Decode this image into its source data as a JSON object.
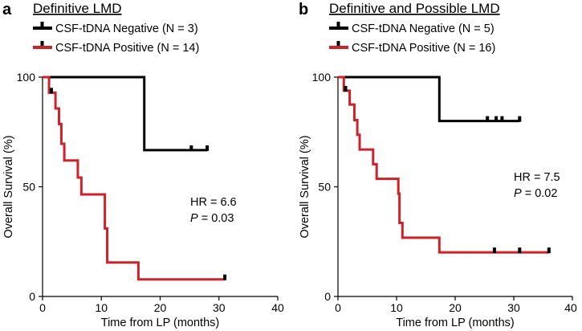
{
  "figure": {
    "panels": [
      "a",
      "b"
    ]
  },
  "chart_data": [
    {
      "type": "line",
      "panel_label": "a",
      "title": "Definitive LMD",
      "xlabel": "Time from LP (months)",
      "ylabel": "Overall Survival (%)",
      "xlim": [
        0,
        40
      ],
      "ylim": [
        0,
        100
      ],
      "xticks": [
        "0",
        "10",
        "20",
        "30",
        "40"
      ],
      "yticks": [
        "0",
        "50",
        "100"
      ],
      "legend_position": "top-left",
      "series": [
        {
          "name": "CSF-tDNA Negative (N = 3)",
          "color": "#000000",
          "steps": [
            [
              0,
              100
            ],
            [
              17.3,
              100
            ],
            [
              17.3,
              66.7
            ],
            [
              28,
              66.7
            ]
          ],
          "censor": [
            [
              25.3,
              66.7
            ],
            [
              28,
              66.7
            ]
          ]
        },
        {
          "name": "CSF-tDNA Positive (N = 14)",
          "color": "#cc2229",
          "steps": [
            [
              0,
              100
            ],
            [
              1.1,
              100
            ],
            [
              1.1,
              92.9
            ],
            [
              2.2,
              92.9
            ],
            [
              2.2,
              85.7
            ],
            [
              2.8,
              85.7
            ],
            [
              2.8,
              78.6
            ],
            [
              3.2,
              78.6
            ],
            [
              3.2,
              69.6
            ],
            [
              3.7,
              69.6
            ],
            [
              3.7,
              62
            ],
            [
              6,
              62
            ],
            [
              6,
              54.2
            ],
            [
              6.6,
              54.2
            ],
            [
              6.6,
              46.5
            ],
            [
              10.6,
              46.5
            ],
            [
              10.6,
              31
            ],
            [
              11,
              31
            ],
            [
              11,
              15.5
            ],
            [
              16.3,
              15.5
            ],
            [
              16.3,
              7.8
            ],
            [
              31,
              7.8
            ]
          ],
          "censor": [
            [
              1.5,
              92.9
            ],
            [
              31,
              7.8
            ]
          ]
        }
      ],
      "annotations": {
        "hr": "HR = 6.6",
        "p_label": "P",
        "p_value": " = 0.03"
      }
    },
    {
      "type": "line",
      "panel_label": "b",
      "title": "Definitive and Possible LMD",
      "xlabel": "Time from LP (months)",
      "ylabel": "Overall Survival (%)",
      "xlim": [
        0,
        40
      ],
      "ylim": [
        0,
        100
      ],
      "xticks": [
        "0",
        "10",
        "20",
        "30",
        "40"
      ],
      "yticks": [
        "0",
        "50",
        "100"
      ],
      "legend_position": "top-left",
      "series": [
        {
          "name": "CSF-tDNA Negative (N = 5)",
          "color": "#000000",
          "steps": [
            [
              0,
              100
            ],
            [
              17.3,
              100
            ],
            [
              17.3,
              80
            ],
            [
              31,
              80
            ]
          ],
          "censor": [
            [
              25.5,
              80
            ],
            [
              27,
              80
            ],
            [
              28,
              80
            ],
            [
              31,
              80
            ]
          ]
        },
        {
          "name": "CSF-tDNA Positive (N = 16)",
          "color": "#cc2229",
          "steps": [
            [
              0,
              100
            ],
            [
              1,
              100
            ],
            [
              1,
              93.8
            ],
            [
              2,
              93.8
            ],
            [
              2,
              87.5
            ],
            [
              2.8,
              87.5
            ],
            [
              2.8,
              80.4
            ],
            [
              3.3,
              80.4
            ],
            [
              3.3,
              73.7
            ],
            [
              3.7,
              73.7
            ],
            [
              3.7,
              67
            ],
            [
              6,
              67
            ],
            [
              6,
              60.3
            ],
            [
              6.6,
              60.3
            ],
            [
              6.6,
              53.6
            ],
            [
              10.3,
              53.6
            ],
            [
              10.3,
              46.9
            ],
            [
              10.5,
              46.9
            ],
            [
              10.5,
              33.5
            ],
            [
              11,
              33.5
            ],
            [
              11,
              26.8
            ],
            [
              17.3,
              26.8
            ],
            [
              17.3,
              20.1
            ],
            [
              36,
              20.1
            ]
          ],
          "censor": [
            [
              1.3,
              93.8
            ],
            [
              26.7,
              20.1
            ],
            [
              31,
              20.1
            ],
            [
              36,
              20.1
            ]
          ]
        }
      ],
      "annotations": {
        "hr": "HR = 7.5",
        "p_label": "P",
        "p_value": " = 0.02"
      }
    }
  ]
}
